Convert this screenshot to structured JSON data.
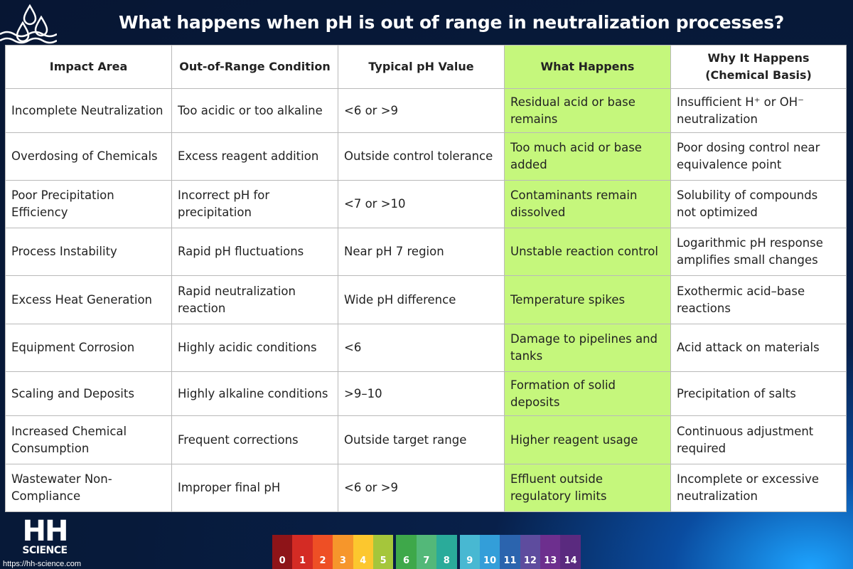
{
  "title": "What happens when pH is out of range in neutralization processes?",
  "table": {
    "headers": [
      "Impact Area",
      "Out-of-Range Condition",
      "Typical pH Value",
      "What Happens",
      "Why It Happens (Chemical Basis)"
    ],
    "rows": [
      [
        "Incomplete Neutralization",
        "Too acidic or too alkaline",
        "<6 or >9",
        "Residual acid or base remains",
        "Insufficient H⁺ or OH⁻ neutralization"
      ],
      [
        "Overdosing of Chemicals",
        "Excess reagent addition",
        "Outside control tolerance",
        "Too much acid or base added",
        "Poor dosing control near equivalence point"
      ],
      [
        "Poor Precipitation Efficiency",
        "Incorrect pH for precipitation",
        "<7 or >10",
        "Contaminants remain dissolved",
        "Solubility of compounds not optimized"
      ],
      [
        "Process Instability",
        "Rapid pH fluctuations",
        "Near pH 7 region",
        "Unstable reaction control",
        "Logarithmic pH response amplifies small changes"
      ],
      [
        "Excess Heat Generation",
        "Rapid neutralization reaction",
        "Wide pH difference",
        "Temperature spikes",
        "Exothermic acid–base reactions"
      ],
      [
        "Equipment Corrosion",
        "Highly acidic conditions",
        "<6",
        "Damage to pipelines and tanks",
        "Acid attack on materials"
      ],
      [
        "Scaling and Deposits",
        "Highly alkaline conditions",
        ">9–10",
        "Formation of solid deposits",
        "Precipitation of salts"
      ],
      [
        "Increased Chemical Consumption",
        "Frequent corrections",
        "Outside target range",
        "Higher reagent usage",
        "Continuous adjustment required"
      ],
      [
        "Wastewater Non-Compliance",
        "Improper final pH",
        "<6 or >9",
        "Effluent outside regulatory limits",
        "Incomplete or excessive neutralization"
      ]
    ],
    "highlight_color": "#c5f77c"
  },
  "logo": {
    "line1": "HH",
    "line2": "SCIENCE"
  },
  "website": "https://hh-science.com",
  "ph_scale": {
    "labels": [
      "0",
      "1",
      "2",
      "3",
      "4",
      "5",
      "6",
      "7",
      "8",
      "9",
      "10",
      "11",
      "12",
      "13",
      "14"
    ],
    "colors": [
      "#8e1418",
      "#d42b24",
      "#ee4f25",
      "#f6962b",
      "#fcc72e",
      "#a5c63b",
      "#3ea84a",
      "#53b879",
      "#2aab9a",
      "#48b8d2",
      "#339ed9",
      "#2b64ae",
      "#5e4c9e",
      "#6d2f8e",
      "#5a2a7f"
    ]
  },
  "icons": {
    "drops": "water-drops-icon",
    "waves": "waves-icon"
  }
}
